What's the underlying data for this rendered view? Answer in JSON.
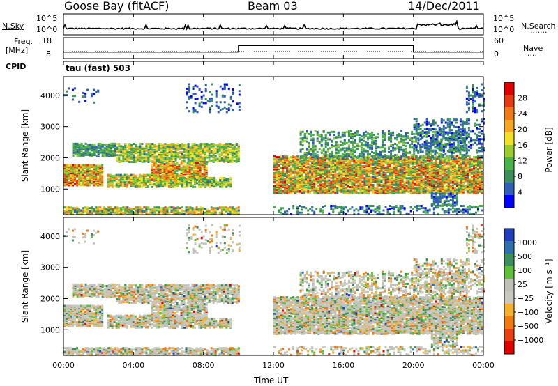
{
  "header": {
    "station": "Goose Bay (fitACF)",
    "beam": "Beam 03",
    "date": "14/Dec/2011"
  },
  "noise_panel": {
    "left_label": "N.Sky",
    "right_label": "N.Search",
    "left_ticks": [
      "10^5",
      "10^0"
    ],
    "right_ticks": [
      "10^5",
      "10^0"
    ]
  },
  "freq_panel": {
    "left_label_1": "Freq.",
    "left_label_2": "[MHz]",
    "right_label": "Nave",
    "left_ticks": [
      "18",
      "8"
    ],
    "right_ticks": [
      "60",
      "0"
    ],
    "freq_step": {
      "low": 10,
      "high": 15,
      "rise_hour": 10.0,
      "fall_hour": 20.0
    }
  },
  "cpid": {
    "label": "CPID",
    "value": "tau (fast) 503"
  },
  "chart_data": [
    {
      "type": "heatmap",
      "name": "power",
      "ylabel": "Slant Range [km]",
      "yticks": [
        "1000",
        "2000",
        "3000",
        "4000"
      ],
      "ytick_values": [
        1000,
        2000,
        3000,
        4000
      ],
      "ylim": [
        180,
        4600
      ],
      "xlim_hours": [
        0,
        24
      ],
      "colorbar_label": "Power [dB]",
      "colorbar_ticks": [
        "4",
        "8",
        "12",
        "16",
        "20",
        "24",
        "28"
      ],
      "colorbar_range": [
        0,
        32
      ],
      "colors": [
        "#0000ff",
        "#2f5fb7",
        "#3a8f5a",
        "#49b24a",
        "#9ccc2b",
        "#f0e02a",
        "#f5a623",
        "#f07a1a",
        "#e83a12",
        "#e00000"
      ]
    },
    {
      "type": "heatmap",
      "name": "velocity",
      "ylabel": "Slant Range [km]",
      "yticks": [
        "1000",
        "2000",
        "3000",
        "4000"
      ],
      "ytick_values": [
        1000,
        2000,
        3000,
        4000
      ],
      "ylim": [
        180,
        4600
      ],
      "xlim_hours": [
        0,
        24
      ],
      "colorbar_label": "Velocity [m s⁻¹]",
      "colorbar_ticks": [
        "1000",
        "500",
        "100",
        "25",
        "−25",
        "−100",
        "−500",
        "−1000"
      ],
      "colors": [
        "#1f3fbf",
        "#2f6fb0",
        "#3c8f5a",
        "#5fbf3a",
        "#c0c0b8",
        "#c8c8c0",
        "#f5b030",
        "#f07a10",
        "#e84010",
        "#e00000"
      ]
    }
  ],
  "time_axis": {
    "label": "Time UT",
    "ticks": [
      "00:00",
      "04:00",
      "08:00",
      "12:00",
      "16:00",
      "20:00",
      "00:00"
    ]
  }
}
